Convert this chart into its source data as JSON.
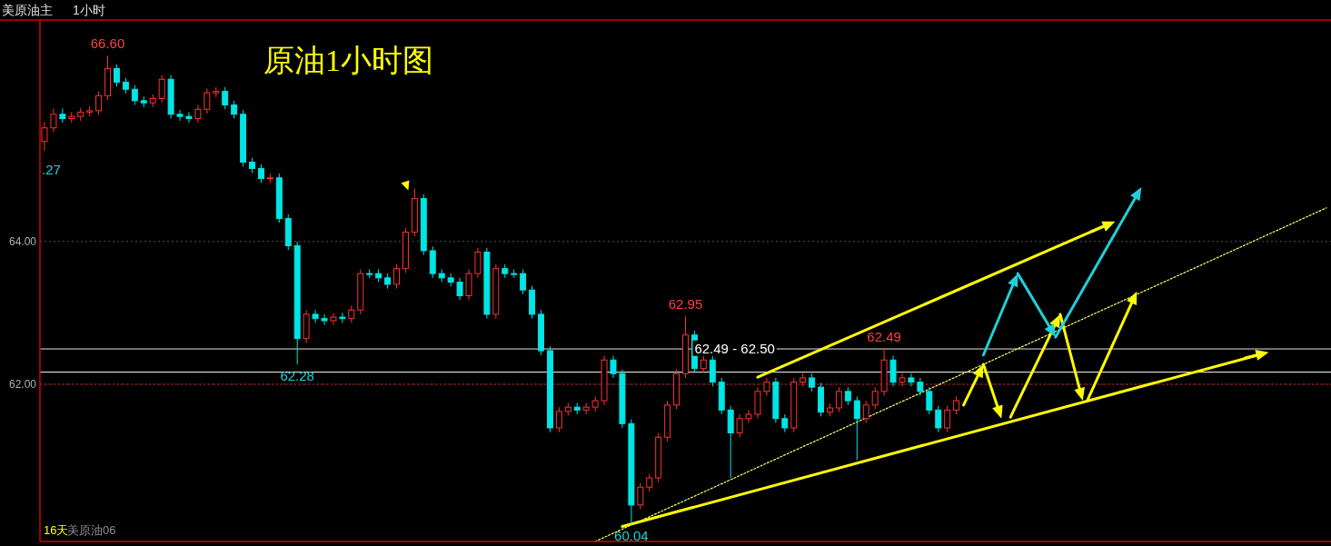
{
  "chart_data": {
    "type": "candlestick",
    "title": "原油1小时图",
    "subtitle": "美原油主",
    "annotations": [
      "1小时",
      "16天",
      "美原油06",
      ".27",
      {
        "text": "66.60",
        "y": 66.6
      },
      {
        "text": "62.28",
        "y": 62.28
      },
      {
        "text": "60.04",
        "y": 60.04
      },
      {
        "text": "62.95",
        "y": 62.95
      },
      {
        "text": "62.49",
        "y": 62.49
      }
    ],
    "categories": [
      null,
      null,
      null,
      null,
      null,
      null,
      null,
      null,
      null,
      null,
      null,
      null,
      null,
      null,
      null,
      null,
      null,
      null,
      null,
      null,
      null,
      null,
      null,
      null,
      null,
      null,
      null,
      null,
      null,
      null,
      null,
      null,
      null,
      null,
      null,
      null,
      null,
      null,
      null,
      null,
      null,
      null,
      null,
      null,
      null,
      null,
      null,
      null,
      null,
      null,
      null,
      null,
      null,
      null,
      null,
      null,
      null,
      null,
      null,
      null,
      null,
      null,
      null,
      null,
      null,
      null,
      null,
      null,
      null,
      null,
      null,
      null,
      null,
      null,
      null,
      null,
      null,
      null,
      null,
      null,
      null,
      null,
      null,
      null,
      null,
      null,
      null,
      null,
      null,
      null,
      null,
      null,
      null,
      null,
      null,
      null,
      null,
      null,
      null,
      null,
      null,
      null,
      null,
      null,
      null,
      null,
      null,
      null,
      null,
      null,
      null,
      null,
      null,
      null,
      null,
      null,
      null,
      null,
      null,
      null,
      null,
      null,
      null,
      null,
      null,
      null,
      null,
      null,
      null,
      null,
      null,
      null,
      null,
      null,
      null,
      null,
      null,
      null,
      null,
      null,
      null,
      null,
      null
    ],
    "ohlc": [
      [
        65.4,
        65.67,
        65.27,
        65.59
      ],
      [
        65.59,
        65.86,
        65.53,
        65.78
      ],
      [
        65.78,
        65.86,
        65.66,
        65.72
      ],
      [
        65.72,
        65.81,
        65.66,
        65.75
      ],
      [
        65.75,
        65.87,
        65.69,
        65.81
      ],
      [
        65.81,
        65.89,
        65.75,
        65.83
      ],
      [
        65.83,
        66.1,
        65.77,
        66.04
      ],
      [
        66.04,
        66.6,
        65.98,
        66.42
      ],
      [
        66.42,
        66.48,
        66.17,
        66.23
      ],
      [
        66.23,
        66.29,
        66.07,
        66.13
      ],
      [
        66.13,
        66.19,
        65.91,
        65.97
      ],
      [
        65.97,
        66.03,
        65.88,
        65.94
      ],
      [
        65.94,
        66.06,
        65.88,
        66.0
      ],
      [
        66.0,
        66.33,
        65.94,
        66.27
      ],
      [
        66.27,
        66.33,
        65.72,
        65.78
      ],
      [
        65.78,
        65.84,
        65.69,
        65.75
      ],
      [
        65.75,
        65.81,
        65.66,
        65.72
      ],
      [
        65.72,
        65.91,
        65.66,
        65.85
      ],
      [
        65.85,
        66.14,
        65.79,
        66.08
      ],
      [
        66.08,
        66.16,
        66.02,
        66.1
      ],
      [
        66.1,
        66.16,
        65.85,
        65.91
      ],
      [
        65.91,
        65.97,
        65.72,
        65.78
      ],
      [
        65.78,
        65.84,
        65.05,
        65.11
      ],
      [
        65.11,
        65.17,
        64.96,
        65.02
      ],
      [
        65.02,
        65.08,
        64.82,
        64.88
      ],
      [
        64.88,
        64.95,
        64.82,
        64.89
      ],
      [
        64.89,
        64.95,
        64.26,
        64.32
      ],
      [
        64.32,
        64.38,
        63.88,
        63.94
      ],
      [
        63.94,
        64.0,
        62.28,
        62.64
      ],
      [
        62.64,
        63.04,
        62.58,
        62.98
      ],
      [
        62.98,
        63.04,
        62.86,
        62.92
      ],
      [
        62.92,
        62.98,
        62.83,
        62.89
      ],
      [
        62.89,
        63.0,
        62.83,
        62.94
      ],
      [
        62.94,
        63.0,
        62.86,
        62.92
      ],
      [
        62.92,
        63.1,
        62.86,
        63.04
      ],
      [
        63.04,
        63.61,
        62.98,
        63.55
      ],
      [
        63.55,
        63.61,
        63.49,
        63.55
      ],
      [
        63.55,
        63.61,
        63.43,
        63.49
      ],
      [
        63.49,
        63.55,
        63.34,
        63.4
      ],
      [
        63.4,
        63.68,
        63.34,
        63.62
      ],
      [
        63.62,
        64.19,
        63.56,
        64.13
      ],
      [
        64.13,
        64.74,
        64.07,
        64.6
      ],
      [
        64.6,
        64.66,
        63.81,
        63.87
      ],
      [
        63.87,
        63.93,
        63.49,
        63.55
      ],
      [
        63.55,
        63.61,
        63.43,
        63.49
      ],
      [
        63.49,
        63.55,
        63.37,
        63.43
      ],
      [
        63.43,
        63.49,
        63.18,
        63.24
      ],
      [
        63.24,
        63.61,
        63.18,
        63.55
      ],
      [
        63.55,
        63.91,
        63.49,
        63.85
      ],
      [
        63.85,
        63.91,
        62.92,
        62.98
      ],
      [
        62.98,
        63.68,
        62.92,
        63.62
      ],
      [
        63.62,
        63.68,
        63.49,
        63.55
      ],
      [
        63.55,
        63.61,
        63.49,
        63.55
      ],
      [
        63.55,
        63.61,
        63.26,
        63.32
      ],
      [
        63.32,
        63.38,
        62.92,
        62.98
      ],
      [
        62.98,
        63.04,
        62.41,
        62.47
      ],
      [
        62.47,
        62.53,
        61.33,
        61.39
      ],
      [
        61.39,
        61.68,
        61.33,
        61.62
      ],
      [
        61.62,
        61.74,
        61.56,
        61.68
      ],
      [
        61.68,
        61.74,
        61.58,
        61.64
      ],
      [
        61.64,
        61.74,
        61.58,
        61.68
      ],
      [
        61.68,
        61.83,
        61.62,
        61.77
      ],
      [
        61.77,
        62.4,
        61.71,
        62.34
      ],
      [
        62.34,
        62.4,
        62.09,
        62.15
      ],
      [
        62.15,
        62.21,
        61.39,
        61.45
      ],
      [
        61.45,
        61.51,
        60.04,
        60.31
      ],
      [
        60.31,
        60.62,
        60.25,
        60.56
      ],
      [
        60.56,
        60.75,
        60.5,
        60.69
      ],
      [
        60.69,
        61.32,
        60.63,
        61.26
      ],
      [
        61.26,
        61.77,
        61.2,
        61.71
      ],
      [
        61.71,
        62.21,
        61.65,
        62.15
      ],
      [
        62.15,
        62.95,
        62.09,
        62.69
      ],
      [
        62.69,
        62.75,
        62.16,
        62.22
      ],
      [
        62.22,
        62.4,
        62.16,
        62.34
      ],
      [
        62.34,
        62.4,
        61.97,
        62.03
      ],
      [
        62.03,
        62.09,
        61.58,
        61.64
      ],
      [
        61.64,
        61.7,
        60.69,
        61.32
      ],
      [
        61.32,
        61.58,
        61.26,
        61.52
      ],
      [
        61.52,
        61.64,
        61.46,
        61.58
      ],
      [
        61.58,
        61.96,
        61.52,
        61.9
      ],
      [
        61.9,
        62.09,
        61.84,
        62.03
      ],
      [
        62.03,
        62.09,
        61.46,
        61.52
      ],
      [
        61.52,
        61.58,
        61.33,
        61.39
      ],
      [
        61.39,
        62.09,
        61.33,
        62.03
      ],
      [
        62.03,
        62.15,
        61.97,
        62.09
      ],
      [
        62.09,
        62.15,
        61.9,
        61.96
      ],
      [
        61.96,
        62.02,
        61.55,
        61.61
      ],
      [
        61.61,
        61.73,
        61.55,
        61.67
      ],
      [
        61.67,
        61.96,
        61.61,
        61.9
      ],
      [
        61.9,
        61.96,
        61.71,
        61.77
      ],
      [
        61.77,
        61.83,
        60.94,
        61.52
      ],
      [
        61.52,
        61.77,
        61.46,
        61.71
      ],
      [
        61.71,
        61.96,
        61.65,
        61.9
      ],
      [
        61.9,
        62.49,
        61.84,
        62.34
      ],
      [
        62.34,
        62.4,
        61.97,
        62.03
      ],
      [
        62.03,
        62.15,
        61.97,
        62.09
      ],
      [
        62.09,
        62.15,
        61.97,
        62.03
      ],
      [
        62.03,
        62.09,
        61.84,
        61.9
      ],
      [
        61.9,
        61.96,
        61.58,
        61.64
      ],
      [
        61.64,
        61.7,
        61.33,
        61.39
      ],
      [
        61.39,
        61.7,
        61.33,
        61.64
      ],
      [
        61.64,
        61.83,
        61.58,
        61.77
      ],
      null,
      null,
      null,
      null,
      null,
      null,
      null,
      null,
      null,
      null,
      null,
      null,
      null,
      null,
      null,
      null,
      null,
      null,
      null,
      null,
      null,
      null,
      null,
      null,
      null,
      null,
      null,
      null,
      null,
      null,
      null,
      null,
      null,
      null,
      null,
      null,
      null,
      null,
      null,
      null,
      null
    ],
    "colors": [
      "#ff3232",
      "#ff3232",
      "#00e5e5",
      "#ff3232",
      "#ff3232",
      "#ff3232",
      "#ff3232",
      "#ff3232",
      "#00e5e5",
      "#00e5e5",
      "#00e5e5",
      "#00e5e5",
      "#ff3232",
      "#ff3232",
      "#00e5e5",
      "#00e5e5",
      "#00e5e5",
      "#ff3232",
      "#ff3232",
      "#ff3232",
      "#00e5e5",
      "#00e5e5",
      "#00e5e5",
      "#00e5e5",
      "#00e5e5",
      "#ff3232",
      "#00e5e5",
      "#00e5e5",
      "#00e5e5",
      "#ff3232",
      "#00e5e5",
      "#00e5e5",
      "#ff3232",
      "#00e5e5",
      "#ff3232",
      "#ff3232",
      "#00e5e5",
      "#00e5e5",
      "#00e5e5",
      "#ff3232",
      "#ff3232",
      "#ff3232",
      "#00e5e5",
      "#00e5e5",
      "#00e5e5",
      "#00e5e5",
      "#00e5e5",
      "#ff3232",
      "#ff3232",
      "#00e5e5",
      "#ff3232",
      "#00e5e5",
      "#00e5e5",
      "#00e5e5",
      "#00e5e5",
      "#00e5e5",
      "#00e5e5",
      "#ff3232",
      "#ff3232",
      "#00e5e5",
      "#ff3232",
      "#ff3232",
      "#ff3232",
      "#00e5e5",
      "#00e5e5",
      "#00e5e5",
      "#ff3232",
      "#ff3232",
      "#ff3232",
      "#ff3232",
      "#ff3232",
      "#ff3232",
      "#00e5e5",
      "#ff3232",
      "#00e5e5",
      "#00e5e5",
      "#00e5e5",
      "#ff3232",
      "#ff3232",
      "#ff3232",
      "#ff3232",
      "#00e5e5",
      "#00e5e5",
      "#ff3232",
      "#ff3232",
      "#00e5e5",
      "#00e5e5",
      "#ff3232",
      "#ff3232",
      "#00e5e5",
      "#00e5e5",
      "#ff3232",
      "#ff3232",
      "#ff3232",
      "#00e5e5",
      "#ff3232",
      "#00e5e5",
      "#00e5e5",
      "#00e5e5",
      "#00e5e5",
      "#ff3232",
      "#ff3232",
      null,
      null,
      null,
      null,
      null,
      null,
      null,
      null,
      null,
      null,
      null,
      null,
      null,
      null,
      null,
      null,
      null,
      null,
      null,
      null,
      null,
      null,
      null,
      null,
      null,
      null,
      null,
      null,
      null,
      null,
      null,
      null,
      null,
      null,
      null,
      null,
      null,
      null,
      null,
      null,
      null
    ],
    "series": [
      {
        "type": "line",
        "color": "#ffff66",
        "line_style": "dotted",
        "values": [
          null,
          null,
          null,
          null,
          null,
          null,
          null,
          null,
          null,
          null,
          null,
          null,
          null,
          null,
          null,
          null,
          null,
          null,
          null,
          null,
          null,
          null,
          null,
          null,
          null,
          null,
          null,
          null,
          null,
          null,
          null,
          null,
          null,
          null,
          null,
          null,
          null,
          null,
          null,
          null,
          null,
          null,
          null,
          null,
          null,
          null,
          null,
          null,
          null,
          null,
          null,
          null,
          null,
          null,
          null,
          null,
          null,
          null,
          null,
          null,
          null,
          59.8,
          null,
          null,
          null,
          null,
          null,
          null,
          null,
          null,
          null,
          null,
          null,
          null,
          null,
          null,
          null,
          null,
          null,
          null,
          null,
          null,
          null,
          null,
          null,
          null,
          null,
          null,
          null,
          null,
          null,
          null,
          null,
          null,
          null,
          null,
          null,
          null,
          null,
          null,
          null,
          null,
          null,
          null,
          null,
          null,
          null,
          null,
          null,
          null,
          null,
          null,
          null,
          null,
          null,
          null,
          null,
          null,
          null,
          null,
          null,
          null,
          null,
          null,
          null,
          null,
          null,
          null,
          null,
          null,
          null,
          null,
          null,
          null,
          null,
          null,
          null,
          null,
          null,
          null,
          null,
          null,
          64.47
        ]
      },
      {
        "type": "line",
        "color": "#ffff00",
        "values": [
          null,
          null,
          null,
          null,
          null,
          null,
          null,
          null,
          null,
          null,
          null,
          null,
          null,
          null,
          null,
          null,
          null,
          null,
          null,
          null,
          null,
          null,
          null,
          null,
          null,
          null,
          null,
          null,
          null,
          null,
          null,
          null,
          null,
          null,
          null,
          null,
          null,
          null,
          null,
          null,
          null,
          null,
          null,
          null,
          null,
          null,
          null,
          null,
          null,
          null,
          null,
          null,
          null,
          null,
          null,
          null,
          null,
          null,
          null,
          null,
          null,
          null,
          null,
          null,
          60.01,
          null,
          null,
          null,
          null,
          null,
          null,
          null,
          null,
          null,
          null,
          null,
          null,
          null,
          null,
          null,
          null,
          null,
          null,
          null,
          null,
          null,
          null,
          null,
          null,
          null,
          null,
          null,
          null,
          null,
          null,
          null,
          null,
          null,
          null,
          null,
          null,
          null,
          null,
          null,
          null,
          null,
          null,
          null,
          null,
          null,
          null,
          null,
          null,
          null,
          null,
          null,
          null,
          null,
          null,
          null,
          null,
          null,
          null,
          null,
          null,
          null,
          null,
          null,
          null,
          null,
          null,
          null,
          null,
          null,
          null,
          62.43,
          null,
          null,
          null,
          null,
          null,
          null,
          null
        ]
      },
      {
        "type": "line",
        "color": "#ffff00",
        "values": [
          null,
          null,
          null,
          null,
          null,
          null,
          null,
          null,
          null,
          null,
          null,
          null,
          null,
          null,
          null,
          null,
          null,
          null,
          null,
          null,
          null,
          null,
          null,
          null,
          null,
          null,
          null,
          null,
          null,
          null,
          null,
          null,
          null,
          null,
          null,
          null,
          null,
          null,
          null,
          null,
          null,
          null,
          null,
          null,
          null,
          null,
          null,
          null,
          null,
          null,
          null,
          null,
          null,
          null,
          null,
          null,
          null,
          null,
          null,
          null,
          null,
          null,
          null,
          null,
          null,
          null,
          null,
          null,
          null,
          null,
          null,
          null,
          null,
          null,
          null,
          null,
          null,
          null,
          null,
          62.1,
          null,
          null,
          null,
          null,
          null,
          null,
          null,
          null,
          null,
          null,
          null,
          null,
          null,
          null,
          null,
          null,
          null,
          null,
          null,
          null,
          null,
          null,
          null,
          null,
          null,
          null,
          null,
          null,
          null,
          null,
          null,
          null,
          null,
          null,
          null,
          null,
          null,
          null,
          64.25,
          null,
          null,
          null,
          null,
          null,
          null,
          null,
          null,
          null,
          null,
          null,
          null,
          null,
          null,
          null,
          null,
          null,
          null,
          null,
          null,
          null,
          null,
          null,
          null
        ]
      }
    ],
    "ref_lines": [
      {
        "axis": "y",
        "value": 62.17,
        "color": "#ffffff"
      },
      {
        "axis": "y",
        "value": 62.0,
        "color": "#c00000",
        "line_style": "dotted"
      }
    ],
    "bands": [
      {
        "axis": "y",
        "from": 62.49,
        "to": 62.5,
        "label": "62.49 - 62.50",
        "color": "#808080"
      }
    ],
    "ylim": [
      59.8,
      67.1
    ],
    "yticks": [
      {
        "value": 64,
        "label": "64.00"
      },
      {
        "value": 62,
        "label": "62.00"
      }
    ],
    "tick_labels": "y",
    "grid": "y"
  }
}
